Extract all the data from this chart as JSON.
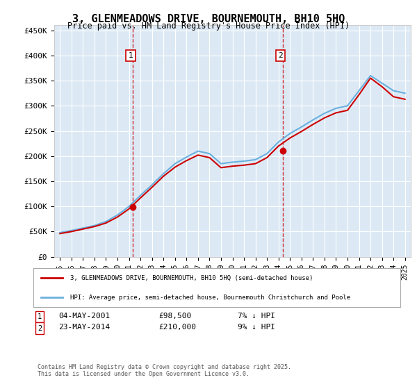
{
  "title": "3, GLENMEADOWS DRIVE, BOURNEMOUTH, BH10 5HQ",
  "subtitle": "Price paid vs. HM Land Registry's House Price Index (HPI)",
  "legend_line1": "3, GLENMEADOWS DRIVE, BOURNEMOUTH, BH10 5HQ (semi-detached house)",
  "legend_line2": "HPI: Average price, semi-detached house, Bournemouth Christchurch and Poole",
  "footnote": "Contains HM Land Registry data © Crown copyright and database right 2025.\nThis data is licensed under the Open Government Licence v3.0.",
  "annotation1": {
    "label": "1",
    "date": "04-MAY-2001",
    "price": "£98,500",
    "note": "7% ↓ HPI"
  },
  "annotation2": {
    "label": "2",
    "date": "23-MAY-2014",
    "price": "£210,000",
    "note": "9% ↓ HPI"
  },
  "sale1_x": 2001.34,
  "sale1_y": 98500,
  "sale2_x": 2014.38,
  "sale2_y": 210000,
  "hpi_color": "#6ab0de",
  "price_color": "#cc0000",
  "background_color": "#dce9f5",
  "plot_bg": "#dce9f5",
  "ylim": [
    0,
    460000
  ],
  "xlim": [
    1994.5,
    2025.5
  ],
  "yticks": [
    0,
    50000,
    100000,
    150000,
    200000,
    250000,
    300000,
    350000,
    400000,
    450000
  ],
  "xticks": [
    1995,
    1996,
    1997,
    1998,
    1999,
    2000,
    2001,
    2002,
    2003,
    2004,
    2005,
    2006,
    2007,
    2008,
    2009,
    2010,
    2011,
    2012,
    2013,
    2014,
    2015,
    2016,
    2017,
    2018,
    2019,
    2020,
    2021,
    2022,
    2023,
    2024,
    2025
  ],
  "hpi_years": [
    1995,
    1996,
    1997,
    1998,
    1999,
    2000,
    2001,
    2002,
    2003,
    2004,
    2005,
    2006,
    2007,
    2008,
    2009,
    2010,
    2011,
    2012,
    2013,
    2014,
    2015,
    2016,
    2017,
    2018,
    2019,
    2020,
    2021,
    2022,
    2023,
    2024,
    2025
  ],
  "hpi_values": [
    48000,
    52000,
    57000,
    62000,
    70000,
    83000,
    100000,
    122000,
    143000,
    165000,
    185000,
    198000,
    210000,
    205000,
    185000,
    188000,
    190000,
    193000,
    205000,
    228000,
    245000,
    258000,
    272000,
    285000,
    295000,
    300000,
    330000,
    360000,
    345000,
    330000,
    325000
  ],
  "price_years": [
    1995,
    1996,
    1997,
    1998,
    1999,
    2000,
    2001,
    2002,
    2003,
    2004,
    2005,
    2006,
    2007,
    2008,
    2009,
    2010,
    2011,
    2012,
    2013,
    2014,
    2015,
    2016,
    2017,
    2018,
    2019,
    2020,
    2021,
    2022,
    2023,
    2024,
    2025
  ],
  "price_values": [
    46000,
    50000,
    55000,
    60000,
    67000,
    79000,
    95000,
    117000,
    138000,
    160000,
    178000,
    191000,
    202000,
    197000,
    177000,
    180000,
    182000,
    185000,
    197000,
    220000,
    236000,
    249000,
    263000,
    276000,
    286000,
    291000,
    322000,
    355000,
    338000,
    318000,
    313000
  ]
}
